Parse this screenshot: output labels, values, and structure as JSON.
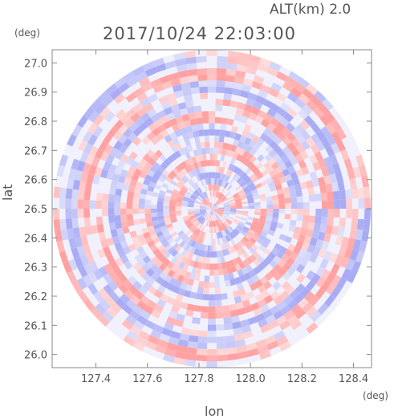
{
  "header": {
    "altitude_label": "ALT(km) 2.0",
    "datetime_label": "2017/10/24 22:03:00"
  },
  "chart_data": {
    "type": "heatmap",
    "title": "2017/10/24 22:03:00",
    "subtitle": "ALT(km) 2.0",
    "xlabel": "lon",
    "ylabel": "lat",
    "x_unit": "(deg)",
    "y_unit": "(deg)",
    "xlim": [
      127.23,
      128.47
    ],
    "ylim": [
      25.955,
      27.045
    ],
    "x_ticks": [
      "127.4",
      "127.6",
      "127.8",
      "128.0",
      "128.2",
      "128.4"
    ],
    "x_tick_values": [
      127.4,
      127.6,
      127.8,
      128.0,
      128.2,
      128.4
    ],
    "y_ticks": [
      "26.0",
      "26.1",
      "26.2",
      "26.3",
      "26.4",
      "26.5",
      "26.6",
      "26.7",
      "26.8",
      "26.9",
      "27.0"
    ],
    "y_tick_values": [
      26.0,
      26.1,
      26.2,
      26.3,
      26.4,
      26.5,
      26.6,
      26.7,
      26.8,
      26.9,
      27.0
    ],
    "radar_center": {
      "lon": 127.85,
      "lat": 26.5
    },
    "radar_radius_deg_lat": 0.545,
    "colors": {
      "positive": "#ff9c9c",
      "negative": "#a4a8f4",
      "neutral": "#ffffff",
      "axis": "#888888",
      "text": "#555555"
    }
  }
}
